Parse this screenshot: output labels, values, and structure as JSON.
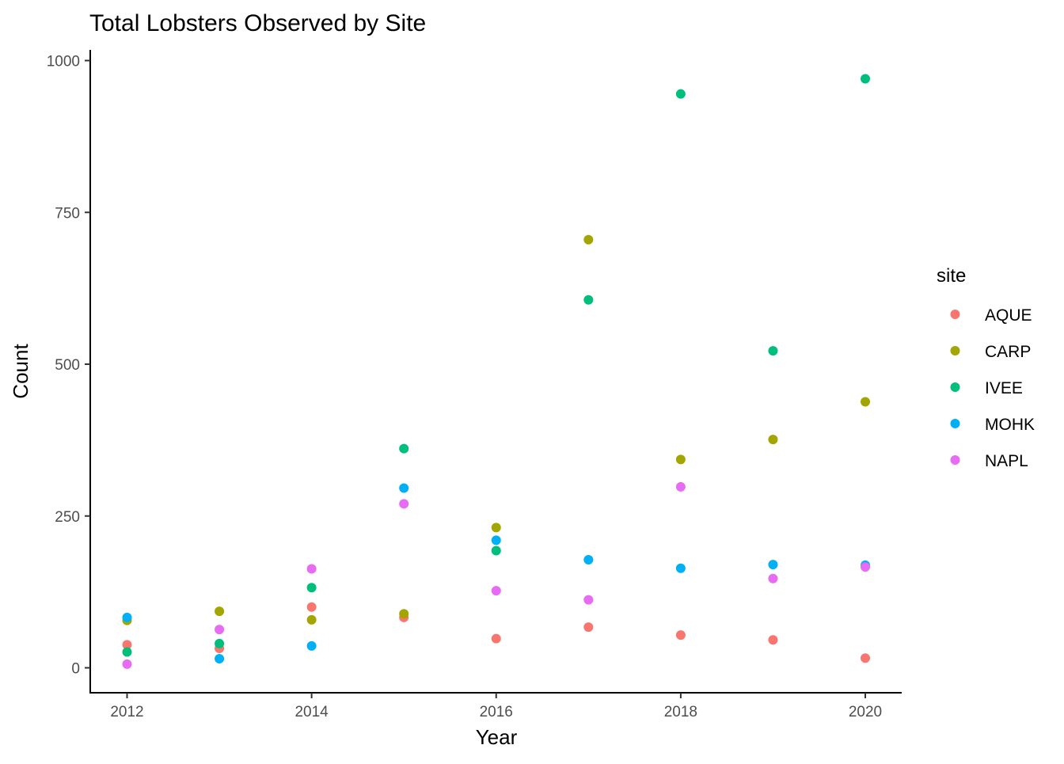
{
  "chart_data": {
    "type": "scatter",
    "title": "Total Lobsters Observed by Site",
    "xlabel": "Year",
    "ylabel": "Count",
    "xlim": [
      2011.8,
      2020.2
    ],
    "ylim": [
      -40,
      1010
    ],
    "x_ticks": [
      2012,
      2014,
      2016,
      2018,
      2020
    ],
    "y_ticks": [
      0,
      250,
      500,
      750,
      1000
    ],
    "grid": false,
    "legend": {
      "title": "site",
      "position": "right"
    },
    "series": [
      {
        "name": "AQUE",
        "color": "#F8766D",
        "points": [
          {
            "x": 2012,
            "y": 38
          },
          {
            "x": 2013,
            "y": 32
          },
          {
            "x": 2014,
            "y": 100
          },
          {
            "x": 2015,
            "y": 83
          },
          {
            "x": 2016,
            "y": 48
          },
          {
            "x": 2017,
            "y": 67
          },
          {
            "x": 2018,
            "y": 54
          },
          {
            "x": 2019,
            "y": 46
          },
          {
            "x": 2020,
            "y": 16
          }
        ]
      },
      {
        "name": "CARP",
        "color": "#A3A500",
        "points": [
          {
            "x": 2012,
            "y": 78
          },
          {
            "x": 2013,
            "y": 93
          },
          {
            "x": 2014,
            "y": 79
          },
          {
            "x": 2015,
            "y": 89
          },
          {
            "x": 2016,
            "y": 231
          },
          {
            "x": 2017,
            "y": 705
          },
          {
            "x": 2018,
            "y": 343
          },
          {
            "x": 2019,
            "y": 376
          },
          {
            "x": 2020,
            "y": 438
          }
        ]
      },
      {
        "name": "IVEE",
        "color": "#00BF7D",
        "points": [
          {
            "x": 2012,
            "y": 26
          },
          {
            "x": 2013,
            "y": 40
          },
          {
            "x": 2014,
            "y": 132
          },
          {
            "x": 2015,
            "y": 361
          },
          {
            "x": 2016,
            "y": 193
          },
          {
            "x": 2017,
            "y": 606
          },
          {
            "x": 2018,
            "y": 945
          },
          {
            "x": 2019,
            "y": 522
          },
          {
            "x": 2020,
            "y": 970
          }
        ]
      },
      {
        "name": "MOHK",
        "color": "#00B0F6",
        "points": [
          {
            "x": 2012,
            "y": 83
          },
          {
            "x": 2013,
            "y": 15
          },
          {
            "x": 2014,
            "y": 36
          },
          {
            "x": 2015,
            "y": 296
          },
          {
            "x": 2016,
            "y": 210
          },
          {
            "x": 2017,
            "y": 178
          },
          {
            "x": 2018,
            "y": 164
          },
          {
            "x": 2019,
            "y": 170
          },
          {
            "x": 2020,
            "y": 169
          }
        ]
      },
      {
        "name": "NAPL",
        "color": "#E76BF3",
        "points": [
          {
            "x": 2012,
            "y": 6
          },
          {
            "x": 2013,
            "y": 63
          },
          {
            "x": 2014,
            "y": 163
          },
          {
            "x": 2015,
            "y": 270
          },
          {
            "x": 2016,
            "y": 127
          },
          {
            "x": 2017,
            "y": 112
          },
          {
            "x": 2018,
            "y": 298
          },
          {
            "x": 2019,
            "y": 147
          },
          {
            "x": 2020,
            "y": 166
          }
        ]
      }
    ]
  }
}
